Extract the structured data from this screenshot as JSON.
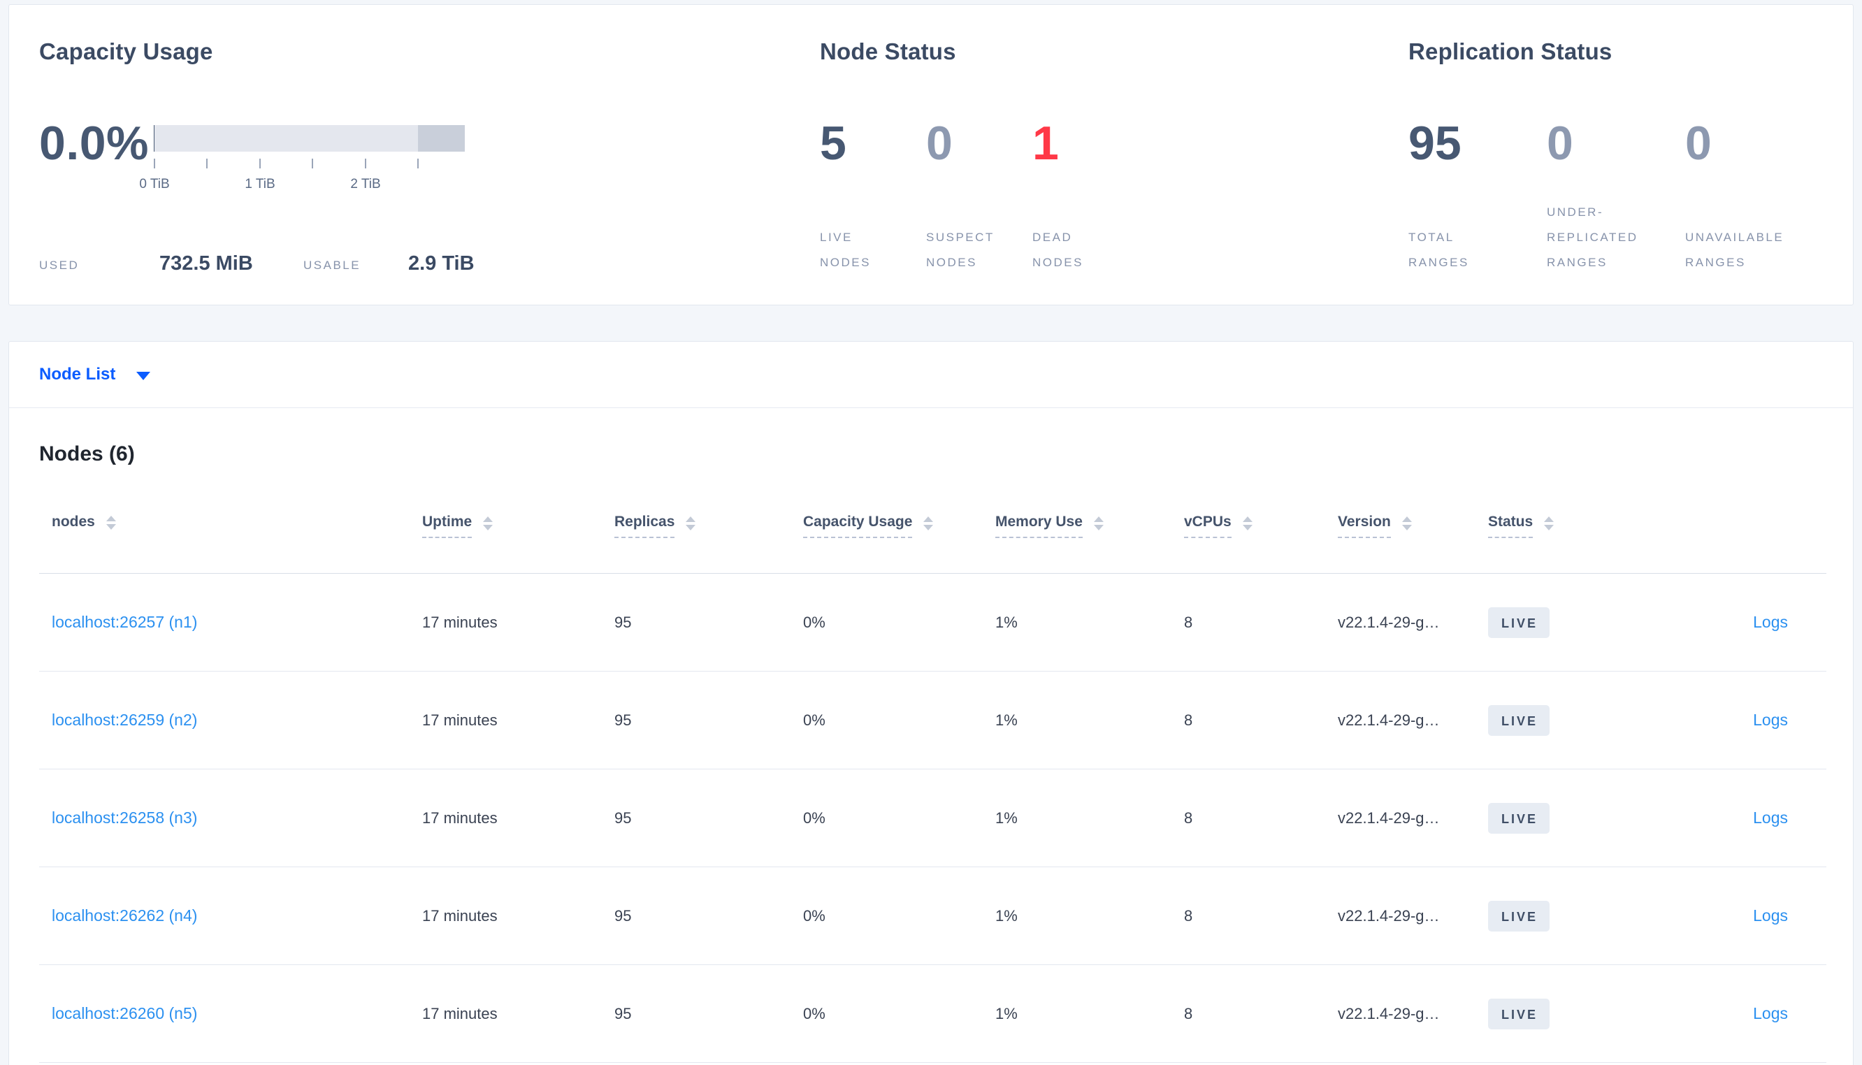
{
  "summary": {
    "capacity": {
      "title": "Capacity Usage",
      "percent": "0.0%",
      "ticks": [
        "0 TiB",
        "1 TiB",
        "2 TiB"
      ],
      "used_label": "USED",
      "used_value": "732.5 MiB",
      "usable_label": "USABLE",
      "usable_value": "2.9 TiB"
    },
    "node_status": {
      "title": "Node Status",
      "metrics": [
        {
          "value": "5",
          "label": "LIVE\nNODES"
        },
        {
          "value": "0",
          "label": "SUSPECT\nNODES"
        },
        {
          "value": "1",
          "label": "DEAD\nNODES"
        }
      ]
    },
    "replication": {
      "title": "Replication Status",
      "metrics": [
        {
          "value": "95",
          "label": "TOTAL\nRANGES"
        },
        {
          "value": "0",
          "label": "UNDER-\nREPLICATED\nRANGES"
        },
        {
          "value": "0",
          "label": "UNAVAILABLE\nRANGES"
        }
      ]
    }
  },
  "node_list": {
    "dropdown_label": "Node List",
    "section_title": "Nodes (6)",
    "columns": [
      {
        "label": "nodes",
        "dashed": false,
        "sortable": true,
        "key": "col-nodes"
      },
      {
        "label": "Uptime",
        "dashed": true,
        "sortable": true,
        "key": "col-uptime"
      },
      {
        "label": "Replicas",
        "dashed": true,
        "sortable": true,
        "key": "col-replicas"
      },
      {
        "label": "Capacity Usage",
        "dashed": true,
        "sortable": true,
        "key": "col-capacity"
      },
      {
        "label": "Memory Use",
        "dashed": true,
        "sortable": true,
        "key": "col-memory"
      },
      {
        "label": "vCPUs",
        "dashed": true,
        "sortable": true,
        "key": "col-vcpus"
      },
      {
        "label": "Version",
        "dashed": true,
        "sortable": true,
        "key": "col-version"
      },
      {
        "label": "Status",
        "dashed": true,
        "sortable": true,
        "key": "col-status"
      },
      {
        "label": "",
        "dashed": false,
        "sortable": false,
        "key": "col-logs"
      }
    ],
    "rows": [
      {
        "node": "localhost:26257 (n1)",
        "uptime": "17 minutes",
        "replicas": "95",
        "capacity": "0%",
        "memory": "1%",
        "vcpus": "8",
        "version": "v22.1.4-29-g…",
        "status": "LIVE",
        "logs": "Logs"
      },
      {
        "node": "localhost:26259 (n2)",
        "uptime": "17 minutes",
        "replicas": "95",
        "capacity": "0%",
        "memory": "1%",
        "vcpus": "8",
        "version": "v22.1.4-29-g…",
        "status": "LIVE",
        "logs": "Logs"
      },
      {
        "node": "localhost:26258 (n3)",
        "uptime": "17 minutes",
        "replicas": "95",
        "capacity": "0%",
        "memory": "1%",
        "vcpus": "8",
        "version": "v22.1.4-29-g…",
        "status": "LIVE",
        "logs": "Logs"
      },
      {
        "node": "localhost:26262 (n4)",
        "uptime": "17 minutes",
        "replicas": "95",
        "capacity": "0%",
        "memory": "1%",
        "vcpus": "8",
        "version": "v22.1.4-29-g…",
        "status": "LIVE",
        "logs": "Logs"
      },
      {
        "node": "localhost:26260 (n5)",
        "uptime": "17 minutes",
        "replicas": "95",
        "capacity": "0%",
        "memory": "1%",
        "vcpus": "8",
        "version": "v22.1.4-29-g…",
        "status": "LIVE",
        "logs": "Logs"
      }
    ]
  },
  "colors": {
    "accent_blue": "#0b5cff",
    "link_blue": "#2b90f0",
    "danger_red": "#ff3847",
    "value_dark": "#475872",
    "value_dim": "#8d99b0",
    "badge_bg": "#e7ecf3",
    "page_bg": "#f3f6fa"
  }
}
